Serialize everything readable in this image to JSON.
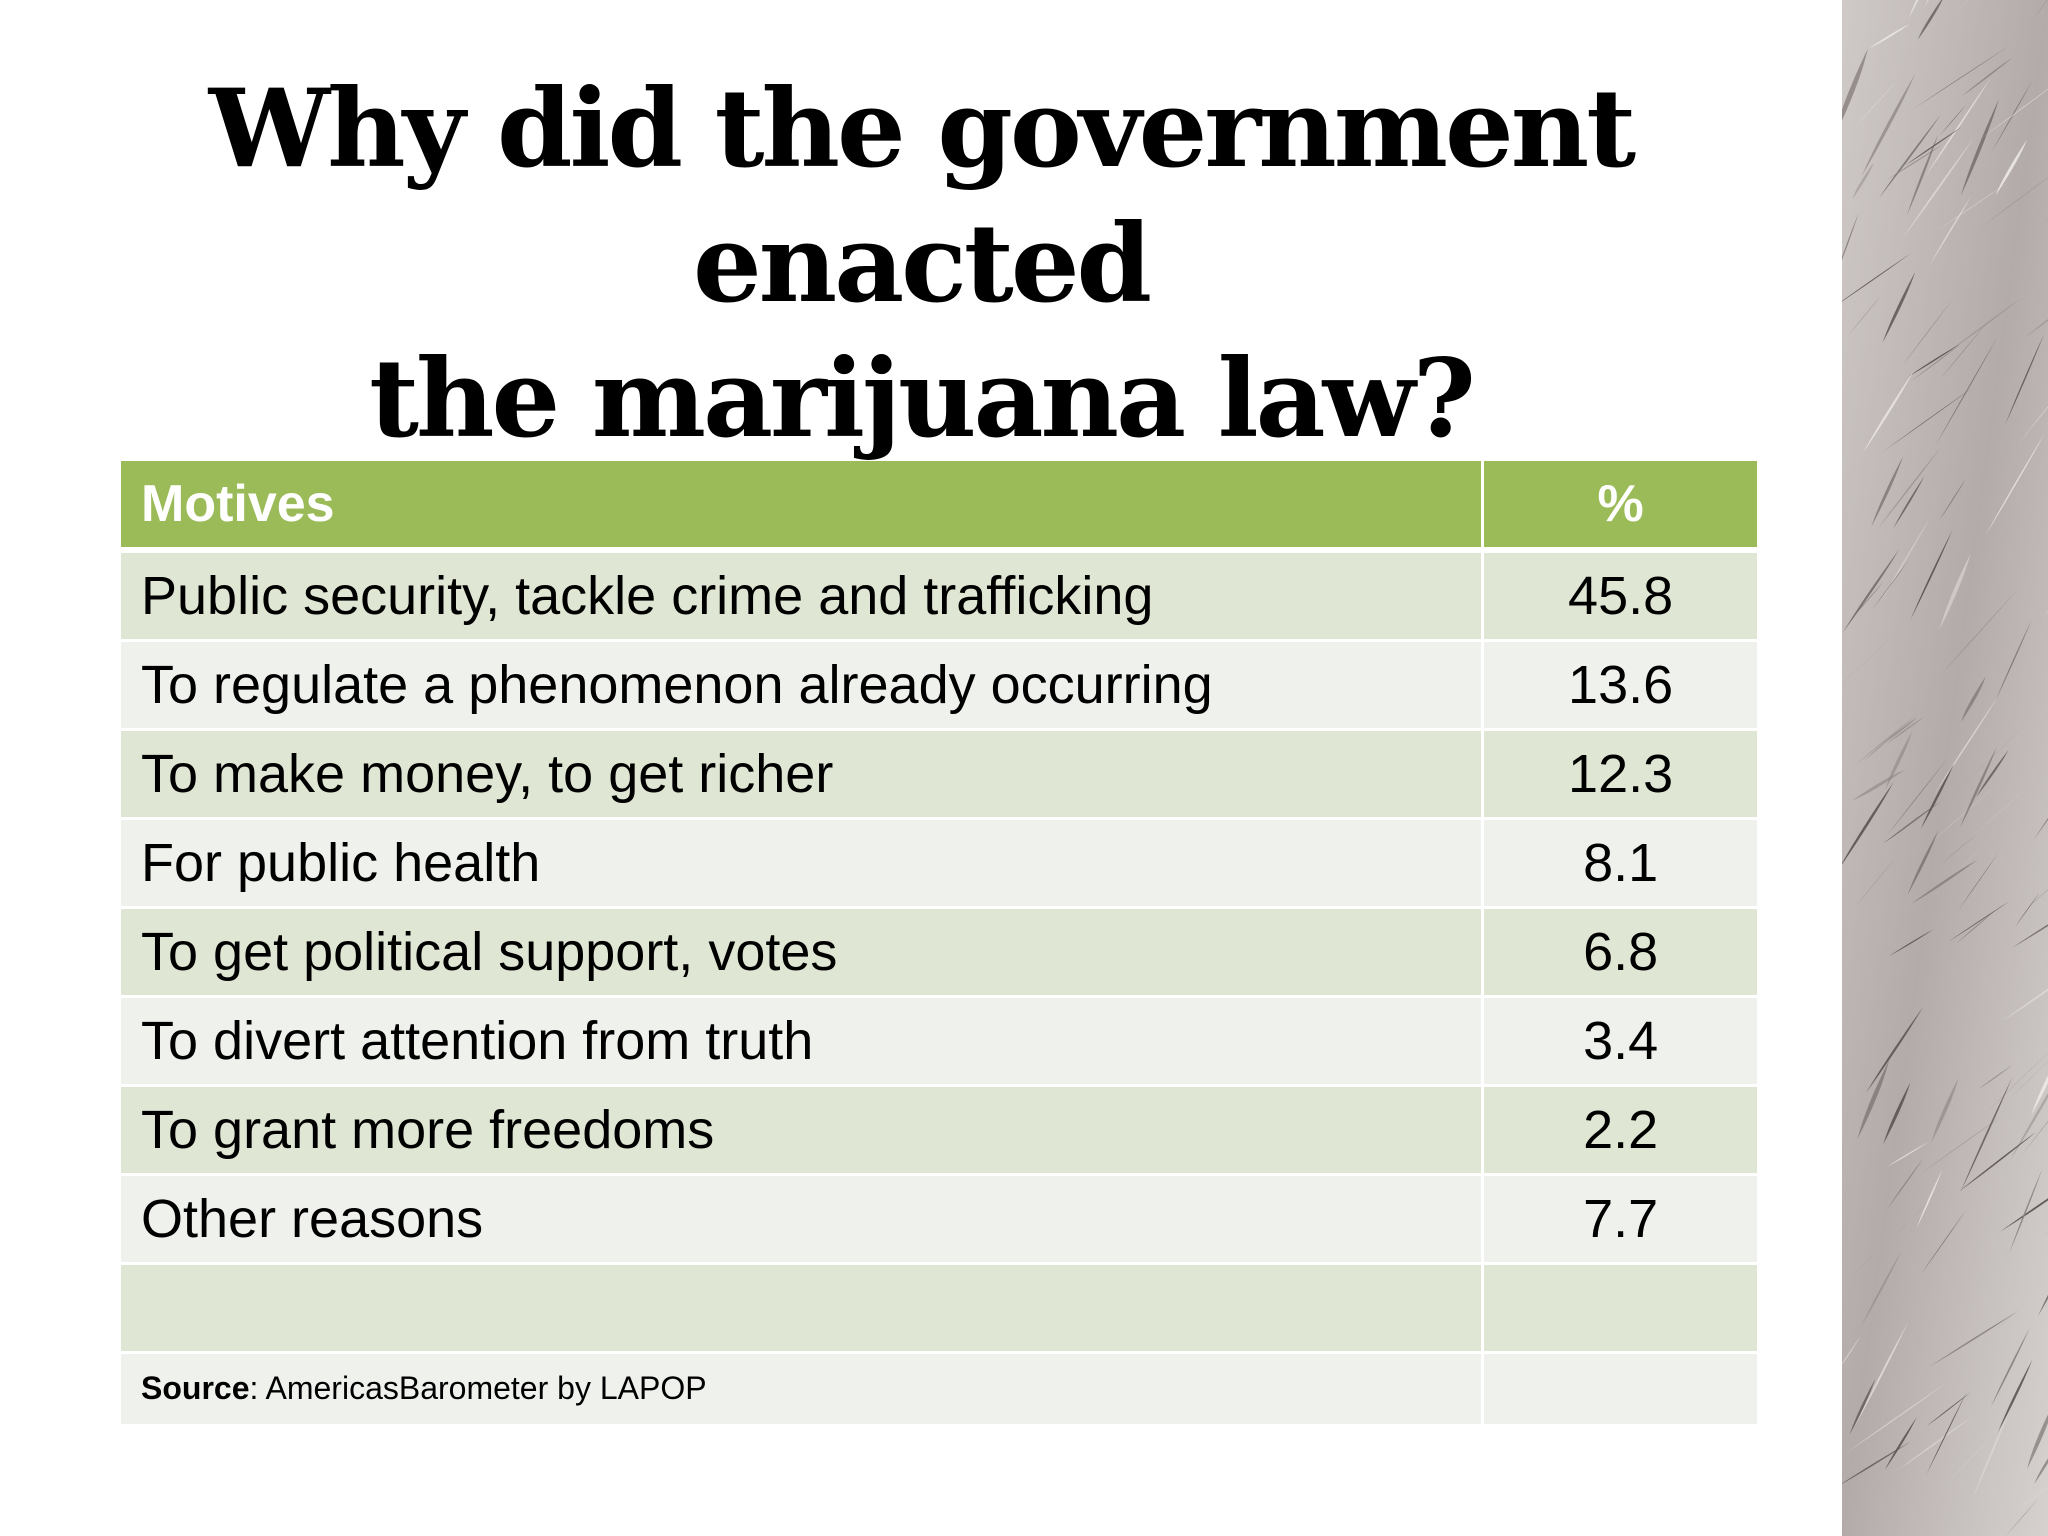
{
  "slide": {
    "title_line1": "Why did the government enacted",
    "title_line2": "the marijuana law?"
  },
  "table": {
    "headers": {
      "motive": "Motives",
      "pct": "%"
    },
    "rows": [
      {
        "motive": "Public security, tackle crime and trafficking",
        "pct": "45.8"
      },
      {
        "motive": "To regulate a phenomenon already occurring",
        "pct": "13.6"
      },
      {
        "motive": "To make money, to get richer",
        "pct": "12.3"
      },
      {
        "motive": "For public health",
        "pct": "8.1"
      },
      {
        "motive": "To get political support, votes",
        "pct": "6.8"
      },
      {
        "motive": "To divert attention from truth",
        "pct": "3.4"
      },
      {
        "motive": "To grant more freedoms",
        "pct": "2.2"
      },
      {
        "motive": "Other reasons",
        "pct": "7.7"
      }
    ],
    "source": {
      "label": "Source",
      "text": ": AmericasBarometer by LAPOP"
    }
  },
  "colors": {
    "header": "#9bbb59",
    "row_dark": "#dfe6d3",
    "row_light": "#eff1ec"
  },
  "decoration": {
    "icon": "cannabis-leaves-photo"
  }
}
